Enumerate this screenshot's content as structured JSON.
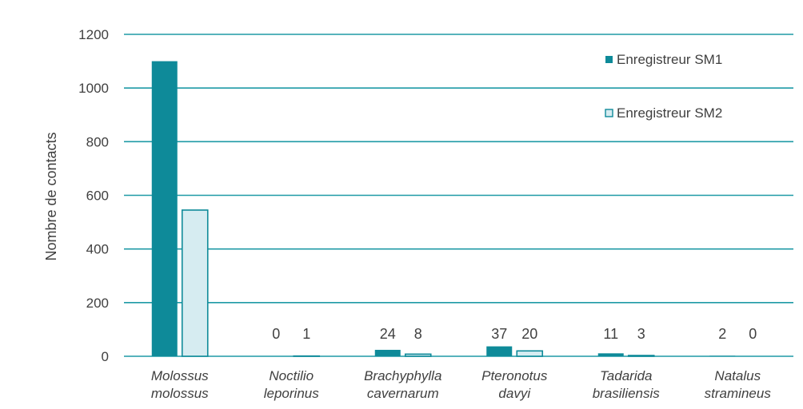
{
  "chart_data": {
    "type": "bar",
    "title": "",
    "xlabel": "",
    "ylabel": "Nombre de contacts",
    "ylim": [
      0,
      1200
    ],
    "yticks": [
      0,
      200,
      400,
      600,
      800,
      1000,
      1200
    ],
    "grid": true,
    "legend_position": "top-right",
    "categories": [
      [
        "Molossus",
        "molossus"
      ],
      [
        "Noctilio",
        "leporinus"
      ],
      [
        "Brachyphylla",
        "cavernarum"
      ],
      [
        "Pteronotus",
        "davyi"
      ],
      [
        "Tadarida",
        "brasiliensis"
      ],
      [
        "Natalus",
        "stramineus"
      ]
    ],
    "series": [
      {
        "name": "Enregistreur SM1",
        "values": [
          1100,
          0,
          24,
          37,
          11,
          2
        ],
        "labels": [
          null,
          "0",
          "24",
          "37",
          "11",
          "2"
        ],
        "fill": "#0e8a99",
        "stroke": "#0e8a99"
      },
      {
        "name": "Enregistreur SM2",
        "values": [
          545,
          1,
          8,
          20,
          3,
          0
        ],
        "labels": [
          null,
          "1",
          "8",
          "20",
          "3",
          "0"
        ],
        "fill": "#d6ecf1",
        "stroke": "#0e8a99"
      }
    ],
    "colors": {
      "grid": "#1f9aa6",
      "text": "#404040"
    }
  }
}
